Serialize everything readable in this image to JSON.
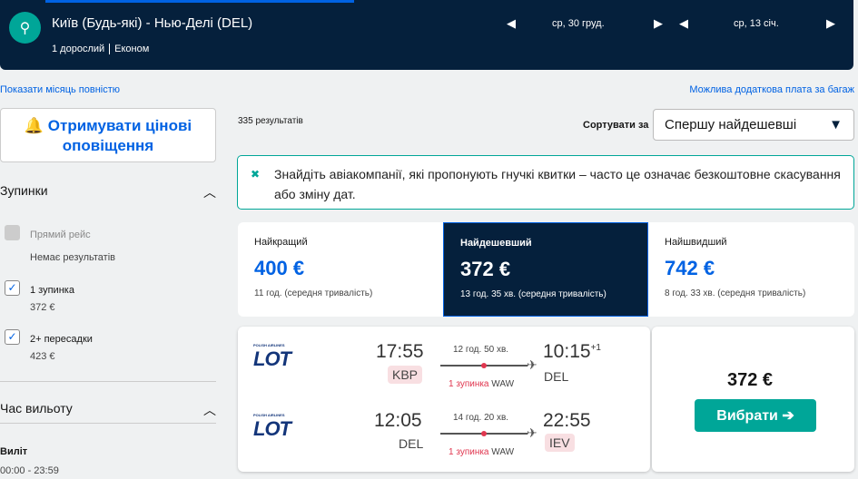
{
  "header": {
    "route": "Київ (Будь-які) - Нью-Делі (DEL)",
    "passengers": "1 дорослий",
    "cabin": "Економ",
    "depart_date": "ср, 30 груд.",
    "return_date": "ср, 13 січ."
  },
  "links": {
    "show_month": "Показати місяць повністю",
    "baggage": "Можлива додаткова плата за багаж"
  },
  "sidebar": {
    "alert_button": "Отримувати цінові оповіщення",
    "stops_title": "Зупинки",
    "stops": [
      {
        "label": "Прямий рейс",
        "sub": "Немає результатів",
        "checked": false,
        "disabled": true
      },
      {
        "label": "1 зупинка",
        "sub": "372 €",
        "checked": true
      },
      {
        "label": "2+ пересадки",
        "sub": "423 €",
        "checked": true
      }
    ],
    "time_title": "Час вильоту",
    "depart_label": "Виліт",
    "depart_range": "00:00 - 23:59"
  },
  "results": {
    "count": "335 результатів",
    "sort_label": "Сортувати за",
    "sort_value": "Спершу найдешевші",
    "banner": "Знайдіть авіакомпанії, які пропонують гнучкі квитки – часто це означає безкоштовне скасування або зміну дат.",
    "tabs": [
      {
        "label": "Найкращий",
        "price": "400 €",
        "detail": "11 год. (середня тривалість)"
      },
      {
        "label": "Найдешевший",
        "price": "372 €",
        "detail": "13 год. 35 хв. (середня тривалість)",
        "selected": true
      },
      {
        "label": "Найшвидший",
        "price": "742 €",
        "detail": "8 год. 33 хв. (середня тривалість)"
      }
    ],
    "flight": {
      "price": "372 €",
      "select_button": "Вибрати ➔",
      "airline": "LOT",
      "airline_small": "POLISH AIRLINES",
      "legs": [
        {
          "dep_time": "17:55",
          "dep_code": "KBP",
          "arr_time": "10:15",
          "arr_offset": "+1",
          "arr_code": "DEL",
          "duration": "12 год. 50 хв.",
          "stops": "1 зупинка",
          "via": "WAW"
        },
        {
          "dep_time": "12:05",
          "dep_code": "DEL",
          "arr_time": "22:55",
          "arr_code": "IEV",
          "duration": "14 год. 20 хв.",
          "stops": "1 зупинка",
          "via": "WAW"
        }
      ]
    }
  }
}
